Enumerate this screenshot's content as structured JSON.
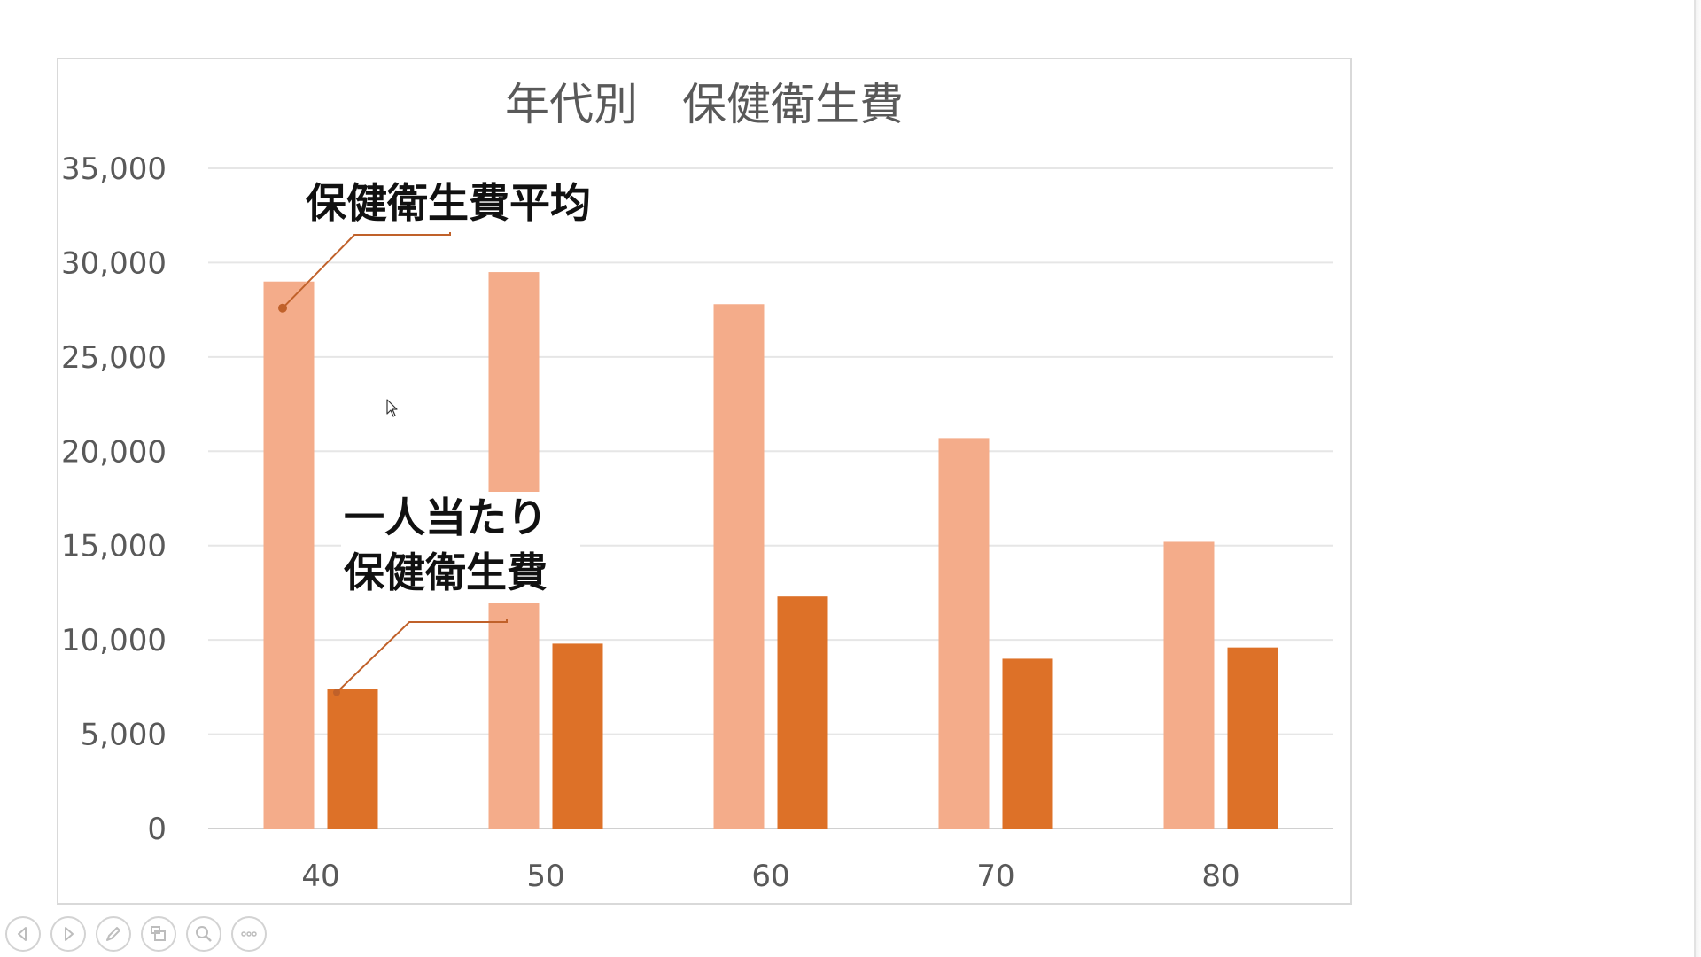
{
  "chart_data": {
    "type": "bar",
    "title": "年代別　保健衛生費",
    "categories": [
      "40",
      "50",
      "60",
      "70",
      "80"
    ],
    "series": [
      {
        "name": "保健衛生費平均",
        "values": [
          29000,
          29500,
          27800,
          20700,
          15200
        ],
        "color": "#F4AC8A"
      },
      {
        "name": "一人当たり保健衛生費",
        "values": [
          7400,
          9800,
          12300,
          9000,
          9600
        ],
        "color": "#DD7128"
      }
    ],
    "ylim": [
      0,
      35000
    ],
    "yticks": [
      "0",
      "5,000",
      "10,000",
      "15,000",
      "20,000",
      "25,000",
      "30,000",
      "35,000"
    ],
    "grid": true,
    "legend": "none",
    "annotations": [
      {
        "lines": [
          "保健衛生費平均"
        ]
      },
      {
        "lines": [
          "一人当たり",
          "保健衛生費"
        ]
      }
    ]
  },
  "toolbar": {
    "buttons": [
      {
        "icon": "previous-icon"
      },
      {
        "icon": "next-icon"
      },
      {
        "icon": "pen-icon"
      },
      {
        "icon": "slides-icon"
      },
      {
        "icon": "zoom-icon"
      },
      {
        "icon": "more-icon"
      }
    ]
  }
}
